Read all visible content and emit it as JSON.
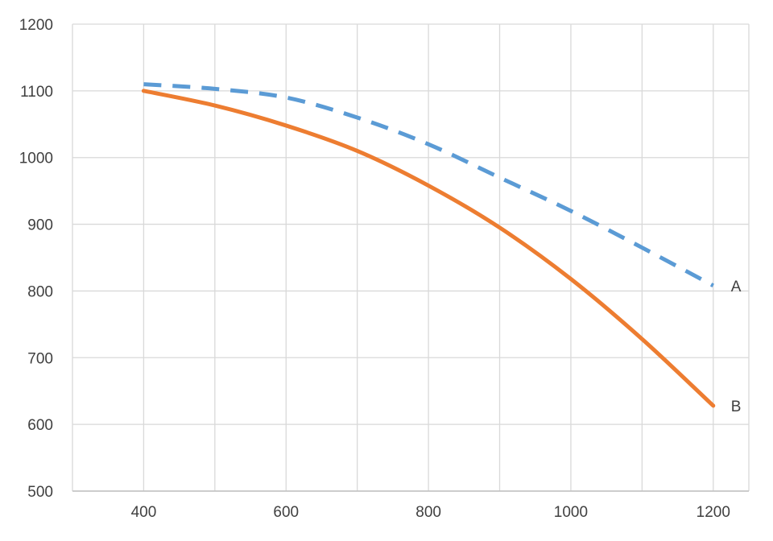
{
  "chart_data": {
    "type": "line",
    "title": "",
    "xlabel": "",
    "ylabel": "",
    "xlim": [
      300,
      1250
    ],
    "ylim": [
      500,
      1200
    ],
    "x_ticks": [
      400,
      600,
      800,
      1000,
      1200
    ],
    "y_ticks": [
      500,
      600,
      700,
      800,
      900,
      1000,
      1100,
      1200
    ],
    "x_gridlines": [
      300,
      400,
      500,
      600,
      700,
      800,
      900,
      1000,
      1100,
      1200,
      1250
    ],
    "grid": true,
    "legend": "none (series labeled at line ends)",
    "series": [
      {
        "name": "A",
        "color": "#5b9bd5",
        "style": "dashed",
        "x": [
          400,
          500,
          600,
          700,
          800,
          900,
          1000,
          1100,
          1200
        ],
        "y": [
          1110,
          1103,
          1090,
          1060,
          1020,
          970,
          920,
          865,
          808
        ]
      },
      {
        "name": "B",
        "color": "#ed7d31",
        "style": "solid",
        "x": [
          400,
          500,
          600,
          700,
          800,
          900,
          1000,
          1100,
          1200
        ],
        "y": [
          1100,
          1078,
          1048,
          1010,
          958,
          895,
          818,
          728,
          628
        ]
      }
    ]
  }
}
